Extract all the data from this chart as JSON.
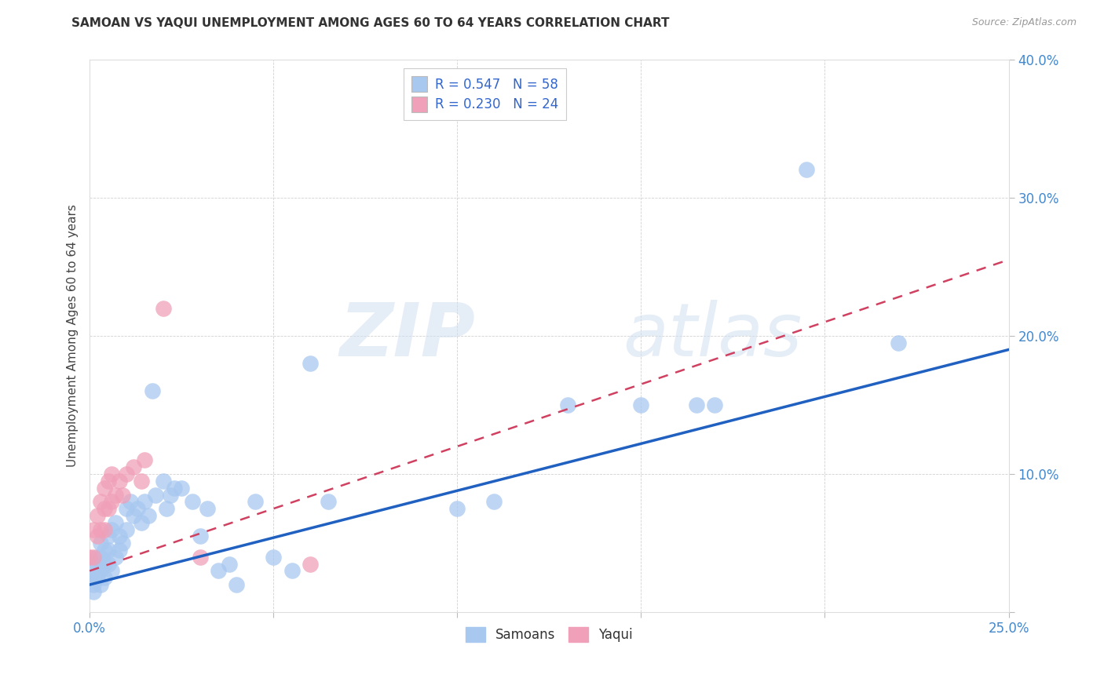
{
  "title": "SAMOAN VS YAQUI UNEMPLOYMENT AMONG AGES 60 TO 64 YEARS CORRELATION CHART",
  "source": "Source: ZipAtlas.com",
  "ylabel": "Unemployment Among Ages 60 to 64 years",
  "legend_label1": "Samoans",
  "legend_label2": "Yaqui",
  "R_samoan": 0.547,
  "N_samoan": 58,
  "R_yaqui": 0.23,
  "N_yaqui": 24,
  "xlim": [
    0.0,
    0.25
  ],
  "ylim": [
    0.0,
    0.4
  ],
  "xticks": [
    0.0,
    0.05,
    0.1,
    0.15,
    0.2,
    0.25
  ],
  "yticks": [
    0.0,
    0.1,
    0.2,
    0.3,
    0.4
  ],
  "color_samoan": "#a8c8f0",
  "color_yaqui": "#f0a0b8",
  "color_line_samoan": "#2060c0",
  "color_line_yaqui": "#d04060",
  "watermark_zip": "ZIP",
  "watermark_atlas": "atlas",
  "samoan_x": [
    0.0,
    0.001,
    0.001,
    0.001,
    0.002,
    0.002,
    0.002,
    0.003,
    0.003,
    0.003,
    0.003,
    0.004,
    0.004,
    0.004,
    0.005,
    0.005,
    0.005,
    0.006,
    0.006,
    0.007,
    0.007,
    0.008,
    0.008,
    0.009,
    0.01,
    0.01,
    0.011,
    0.012,
    0.013,
    0.014,
    0.015,
    0.016,
    0.017,
    0.018,
    0.02,
    0.021,
    0.022,
    0.023,
    0.025,
    0.028,
    0.03,
    0.032,
    0.035,
    0.038,
    0.04,
    0.045,
    0.05,
    0.055,
    0.06,
    0.065,
    0.1,
    0.11,
    0.13,
    0.15,
    0.165,
    0.17,
    0.195,
    0.22
  ],
  "samoan_y": [
    0.025,
    0.03,
    0.02,
    0.015,
    0.04,
    0.025,
    0.035,
    0.05,
    0.04,
    0.03,
    0.02,
    0.045,
    0.035,
    0.025,
    0.055,
    0.045,
    0.035,
    0.06,
    0.03,
    0.065,
    0.04,
    0.055,
    0.045,
    0.05,
    0.075,
    0.06,
    0.08,
    0.07,
    0.075,
    0.065,
    0.08,
    0.07,
    0.16,
    0.085,
    0.095,
    0.075,
    0.085,
    0.09,
    0.09,
    0.08,
    0.055,
    0.075,
    0.03,
    0.035,
    0.02,
    0.08,
    0.04,
    0.03,
    0.18,
    0.08,
    0.075,
    0.08,
    0.15,
    0.15,
    0.15,
    0.15,
    0.32,
    0.195
  ],
  "yaqui_x": [
    0.0,
    0.001,
    0.001,
    0.002,
    0.002,
    0.003,
    0.003,
    0.004,
    0.004,
    0.004,
    0.005,
    0.005,
    0.006,
    0.006,
    0.007,
    0.008,
    0.009,
    0.01,
    0.012,
    0.014,
    0.015,
    0.02,
    0.03,
    0.06
  ],
  "yaqui_y": [
    0.04,
    0.06,
    0.04,
    0.07,
    0.055,
    0.08,
    0.06,
    0.09,
    0.075,
    0.06,
    0.095,
    0.075,
    0.1,
    0.08,
    0.085,
    0.095,
    0.085,
    0.1,
    0.105,
    0.095,
    0.11,
    0.22,
    0.04,
    0.035
  ],
  "line_samoan_x0": 0.0,
  "line_samoan_y0": 0.02,
  "line_samoan_x1": 0.25,
  "line_samoan_y1": 0.19,
  "line_yaqui_x0": 0.0,
  "line_yaqui_y0": 0.03,
  "line_yaqui_x1": 0.25,
  "line_yaqui_y1": 0.255
}
